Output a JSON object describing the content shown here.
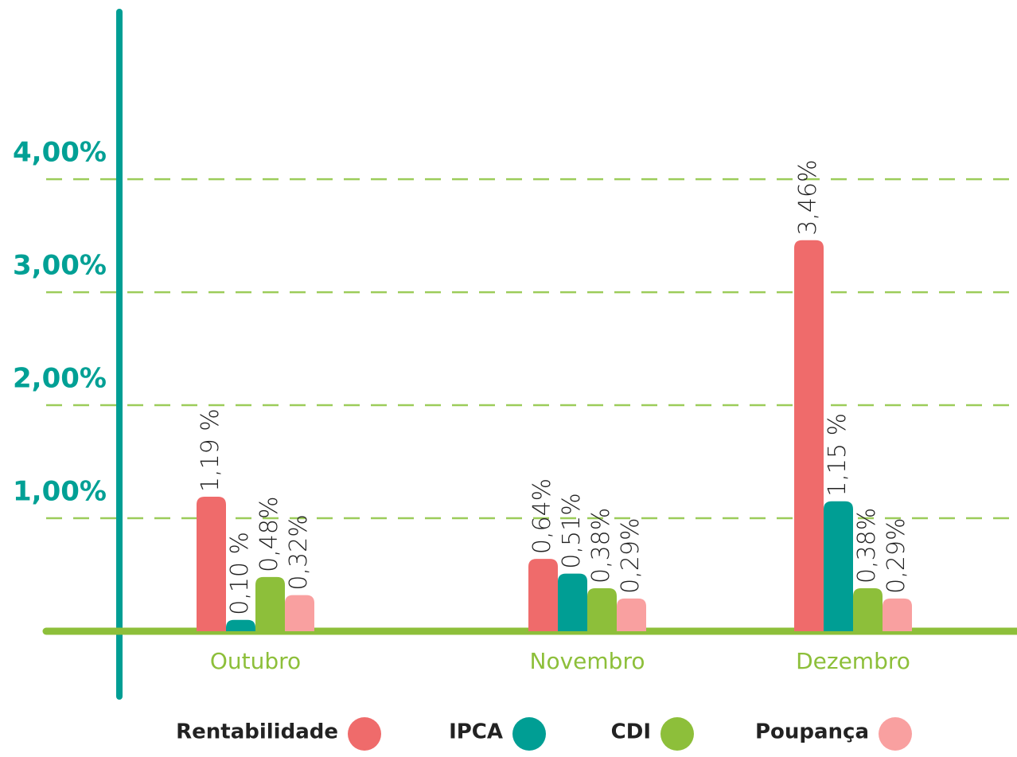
{
  "chart_data": {
    "type": "bar",
    "categories": [
      "Outubro",
      "Novembro",
      "Dezembro"
    ],
    "series": [
      {
        "name": "Rentabilidade",
        "color": "#ef6b6b",
        "values": [
          1.19,
          0.64,
          3.46
        ],
        "value_labels": [
          "1,19 %",
          "0,64%",
          "3,46%"
        ]
      },
      {
        "name": "IPCA",
        "color": "#009e94",
        "values": [
          0.1,
          0.51,
          1.15
        ],
        "value_labels": [
          "0,10 %",
          "0,51%",
          "1,15 %"
        ]
      },
      {
        "name": "CDI",
        "color": "#8dbf3a",
        "values": [
          0.48,
          0.38,
          0.38
        ],
        "value_labels": [
          "0,48%",
          "0,38%",
          "0,38%"
        ]
      },
      {
        "name": "Poupança",
        "color": "#f9a0a0",
        "values": [
          0.32,
          0.29,
          0.29
        ],
        "value_labels": [
          "0,32%",
          "0,29%",
          "0,29%"
        ]
      }
    ],
    "ylim": [
      0,
      5.48
    ],
    "yticks": [
      {
        "value": 1,
        "label": "1,00%"
      },
      {
        "value": 2,
        "label": "2,00%"
      },
      {
        "value": 3,
        "label": "3,00%"
      },
      {
        "value": 4,
        "label": "4,00%"
      }
    ],
    "grid": true
  }
}
